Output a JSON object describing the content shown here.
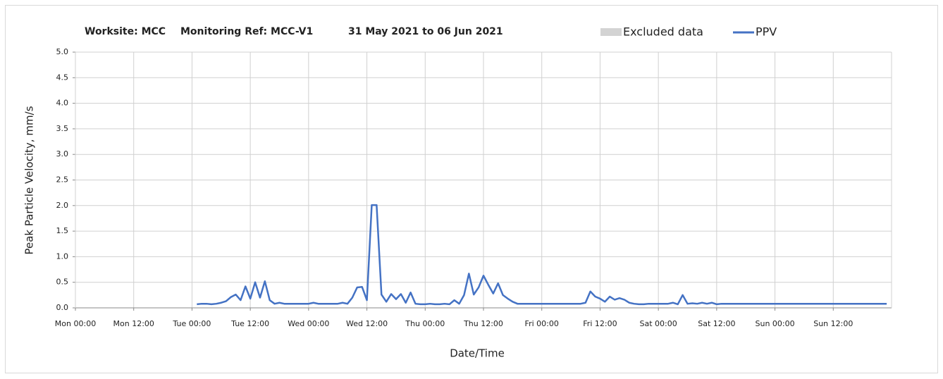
{
  "chart_data": {
    "type": "line",
    "title_parts": [
      "Worksite: MCC",
      "Monitoring Ref: MCC-V1",
      "31 May 2021 to 06 Jun 2021"
    ],
    "ylabel": "Peak Particle Velocity, mm/s",
    "xlabel": "Date/Time",
    "excluded_data": {
      "name": "Excluded data",
      "color": "#d3d3d3"
    },
    "x": [
      25,
      26,
      27,
      28,
      29,
      30,
      31,
      32,
      33,
      34,
      35,
      36,
      37,
      38,
      39,
      40,
      41,
      42,
      43,
      44,
      45,
      46,
      47,
      48,
      49,
      50,
      51,
      52,
      53,
      54,
      55,
      56,
      57,
      58,
      59,
      60,
      61,
      62,
      63,
      64,
      65,
      66,
      67,
      68,
      69,
      70,
      71,
      72,
      73,
      74,
      75,
      76,
      77,
      78,
      79,
      80,
      81,
      82,
      83,
      84,
      85,
      86,
      87,
      88,
      89,
      90,
      91,
      92,
      93,
      94,
      95,
      96,
      97,
      98,
      99,
      100,
      101,
      102,
      103,
      104,
      105,
      106,
      107,
      108,
      109,
      110,
      111,
      112,
      113,
      114,
      115,
      116,
      117,
      118,
      119,
      120,
      121,
      122,
      123,
      124,
      125,
      126,
      127,
      128,
      129,
      130,
      131,
      132,
      133,
      134,
      135,
      136,
      137,
      138,
      139,
      140,
      141,
      142,
      143,
      144,
      145,
      146,
      147,
      148,
      149,
      150,
      151,
      152,
      153,
      154,
      155,
      156,
      157,
      158,
      159,
      160,
      161,
      162,
      163,
      164,
      165,
      166,
      167
    ],
    "series": [
      {
        "name": "PPV",
        "color": "#4472c4",
        "values": [
          0.07,
          0.08,
          0.08,
          0.07,
          0.08,
          0.1,
          0.13,
          0.21,
          0.26,
          0.15,
          0.42,
          0.18,
          0.5,
          0.2,
          0.52,
          0.15,
          0.08,
          0.1,
          0.08,
          0.08,
          0.08,
          0.08,
          0.08,
          0.08,
          0.1,
          0.08,
          0.08,
          0.08,
          0.08,
          0.08,
          0.1,
          0.08,
          0.2,
          0.4,
          0.41,
          0.15,
          2.01,
          2.01,
          0.26,
          0.12,
          0.27,
          0.17,
          0.27,
          0.1,
          0.3,
          0.08,
          0.07,
          0.07,
          0.08,
          0.07,
          0.07,
          0.08,
          0.07,
          0.15,
          0.08,
          0.25,
          0.67,
          0.26,
          0.4,
          0.63,
          0.45,
          0.28,
          0.48,
          0.25,
          0.18,
          0.12,
          0.08,
          0.08,
          0.08,
          0.08,
          0.08,
          0.08,
          0.08,
          0.08,
          0.08,
          0.08,
          0.08,
          0.08,
          0.08,
          0.08,
          0.1,
          0.32,
          0.22,
          0.18,
          0.12,
          0.22,
          0.16,
          0.19,
          0.16,
          0.1,
          0.08,
          0.07,
          0.07,
          0.08,
          0.08,
          0.08,
          0.08,
          0.08,
          0.1,
          0.07,
          0.25,
          0.08,
          0.09,
          0.08,
          0.1,
          0.08,
          0.1,
          0.07,
          0.08,
          0.08,
          0.08,
          0.08,
          0.08,
          0.08,
          0.08,
          0.08,
          0.08,
          0.08,
          0.08,
          0.08,
          0.08,
          0.08,
          0.08,
          0.08,
          0.08,
          0.08,
          0.08,
          0.08,
          0.08,
          0.08,
          0.08,
          0.08,
          0.08,
          0.08,
          0.08,
          0.08,
          0.08,
          0.08,
          0.08,
          0.08,
          0.08,
          0.08,
          0.08
        ]
      }
    ],
    "xlim": [
      0,
      168
    ],
    "xticks": [
      {
        "value": 0,
        "label": "Mon 00:00"
      },
      {
        "value": 12,
        "label": "Mon 12:00"
      },
      {
        "value": 24,
        "label": "Tue 00:00"
      },
      {
        "value": 36,
        "label": "Tue 12:00"
      },
      {
        "value": 48,
        "label": "Wed 00:00"
      },
      {
        "value": 60,
        "label": "Wed 12:00"
      },
      {
        "value": 72,
        "label": "Thu 00:00"
      },
      {
        "value": 84,
        "label": "Thu 12:00"
      },
      {
        "value": 96,
        "label": "Fri 00:00"
      },
      {
        "value": 108,
        "label": "Fri 12:00"
      },
      {
        "value": 120,
        "label": "Sat 00:00"
      },
      {
        "value": 132,
        "label": "Sat 12:00"
      },
      {
        "value": 144,
        "label": "Sun 00:00"
      },
      {
        "value": 156,
        "label": "Sun 12:00"
      }
    ],
    "ylim": [
      0,
      5
    ],
    "yticks": [
      {
        "value": 0,
        "label": "0.0"
      },
      {
        "value": 0.5,
        "label": "0.5"
      },
      {
        "value": 1,
        "label": "1.0"
      },
      {
        "value": 1.5,
        "label": "1.5"
      },
      {
        "value": 2,
        "label": "2.0"
      },
      {
        "value": 2.5,
        "label": "2.5"
      },
      {
        "value": 3,
        "label": "3.0"
      },
      {
        "value": 3.5,
        "label": "3.5"
      },
      {
        "value": 4,
        "label": "4.0"
      },
      {
        "value": 4.5,
        "label": "4.5"
      },
      {
        "value": 5,
        "label": "5.0"
      }
    ],
    "grid": true
  }
}
